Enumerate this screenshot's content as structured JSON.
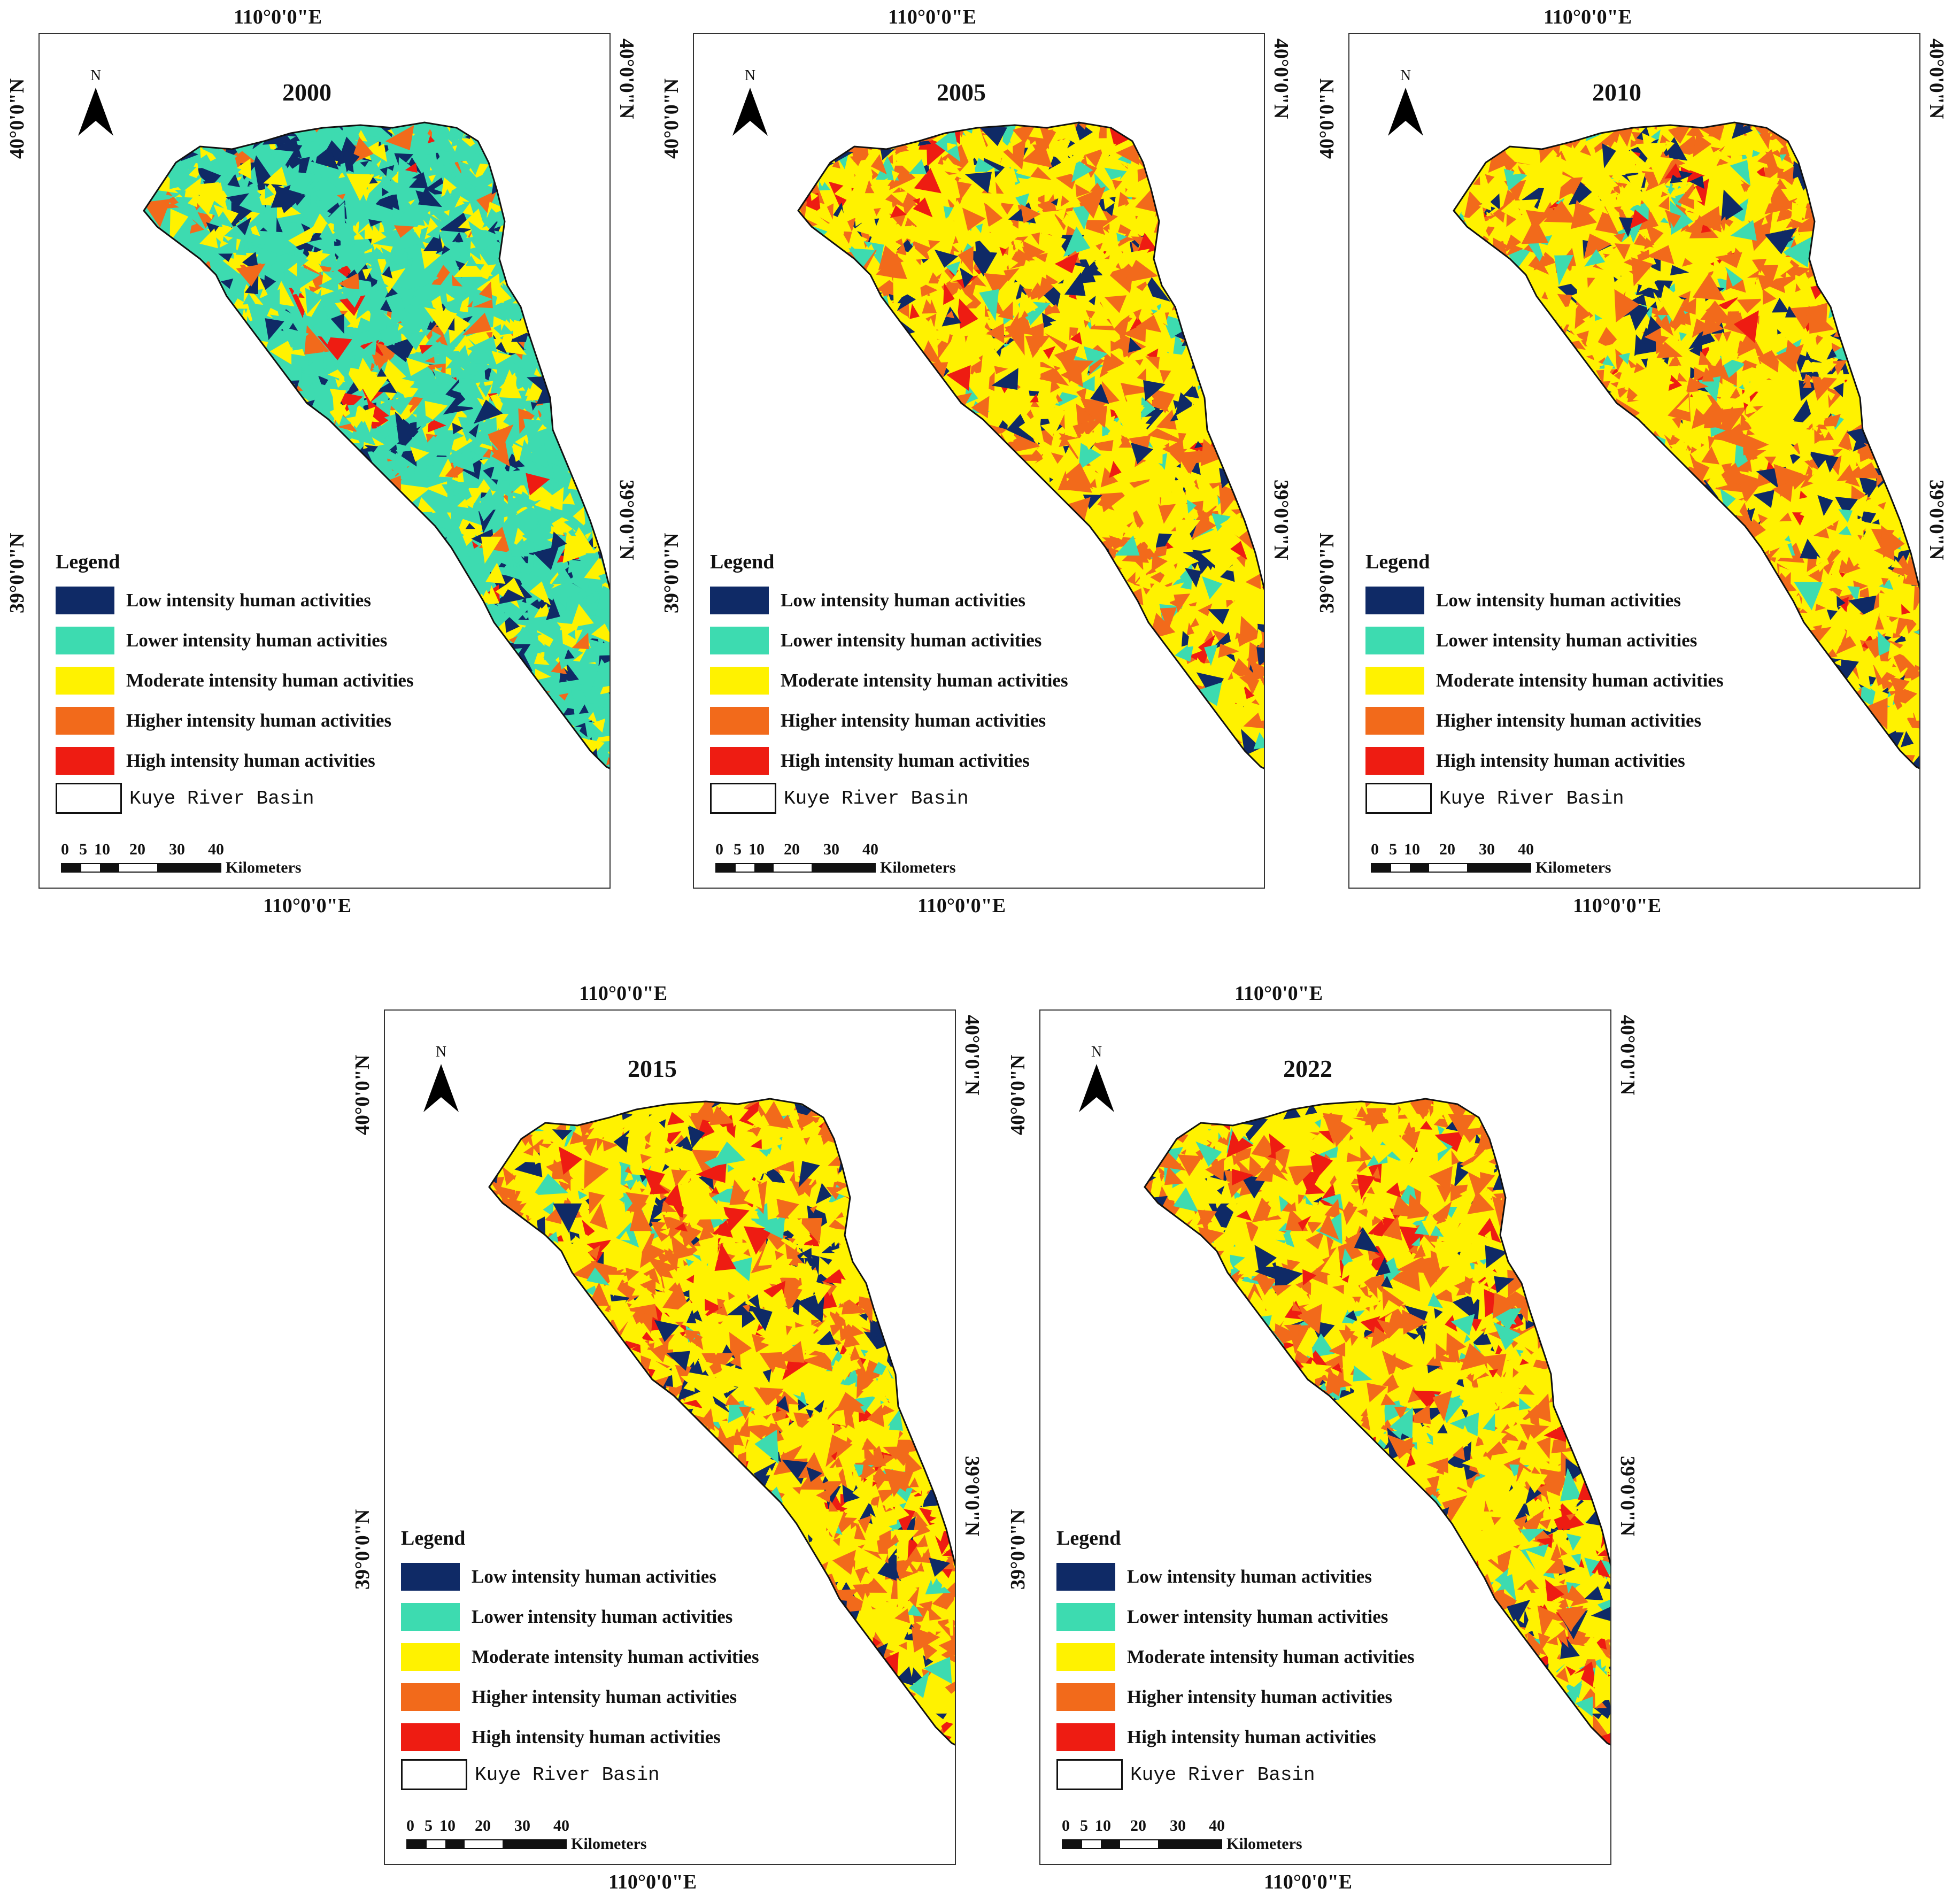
{
  "legend": {
    "title": "Legend",
    "classes": [
      {
        "label": "Low intensity human activities",
        "color": "#0f2a66"
      },
      {
        "label": "Lower intensity human activities",
        "color": "#3ddbb0"
      },
      {
        "label": "Moderate intensity human activities",
        "color": "#fff200"
      },
      {
        "label": "Higher intensity human activities",
        "color": "#f26a1b"
      },
      {
        "label": "High intensity human activities",
        "color": "#ee1c12"
      }
    ],
    "boundary_label": "Kuye River Basin"
  },
  "scale": {
    "ticks": [
      "0",
      "5",
      "10",
      "20",
      "30",
      "40"
    ],
    "unit": "Kilometers"
  },
  "north_label": "N",
  "coords": {
    "lon": "110°0'0\"E",
    "lat_north": "40°0'0\"N",
    "lat_south": "39°0'0\"N"
  },
  "maps": [
    {
      "year": "2000",
      "dominant": "Lower intensity human activities"
    },
    {
      "year": "2005",
      "dominant": "Moderate intensity human activities"
    },
    {
      "year": "2010",
      "dominant": "Moderate intensity human activities"
    },
    {
      "year": "2015",
      "dominant": "Moderate intensity human activities"
    },
    {
      "year": "2022",
      "dominant": "Moderate intensity human activities"
    }
  ]
}
